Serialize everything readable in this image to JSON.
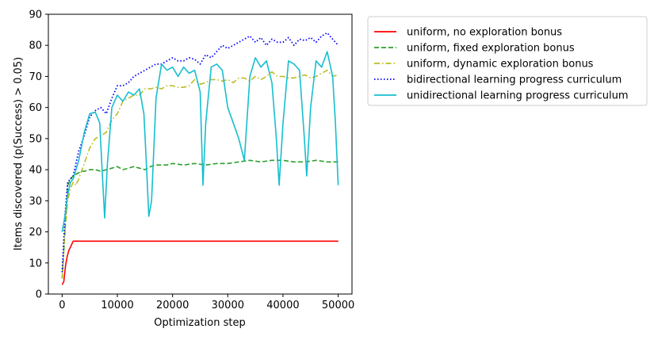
{
  "chart_data": {
    "type": "line",
    "title": "",
    "xlabel": "Optimization step",
    "ylabel": "Items discovered (p(Success) > 0.05)",
    "xlim": [
      -2500,
      52500
    ],
    "ylim": [
      0,
      90
    ],
    "xticks": [
      0,
      10000,
      20000,
      30000,
      40000,
      50000
    ],
    "yticks": [
      0,
      10,
      20,
      30,
      40,
      50,
      60,
      70,
      80,
      90
    ],
    "grid": false,
    "legend_position": "outside-right-top",
    "series": [
      {
        "name": "uniform,  no exploration bonus",
        "color": "#ff0000",
        "style": "solid",
        "x": [
          0,
          300,
          600,
          900,
          1200,
          1600,
          2000,
          2500,
          5000,
          10000,
          20000,
          30000,
          40000,
          50000
        ],
        "y": [
          3,
          4,
          9,
          12,
          14,
          15.5,
          17,
          17,
          17,
          17,
          17,
          17,
          17,
          17
        ]
      },
      {
        "name": "uniform,  fixed exploration bonus",
        "color": "#2ca02c",
        "style": "dashed",
        "x": [
          0,
          500,
          1000,
          1500,
          2000,
          2500,
          3000,
          3500,
          4000,
          5000,
          6000,
          7000,
          8000,
          9000,
          10000,
          11000,
          12000,
          13000,
          14000,
          15000,
          16000,
          17000,
          18000,
          19000,
          20000,
          22000,
          24000,
          26000,
          28000,
          30000,
          32000,
          34000,
          36000,
          38000,
          40000,
          42000,
          44000,
          46000,
          48000,
          50000
        ],
        "y": [
          5,
          20,
          35,
          37,
          38,
          38.5,
          39,
          39.5,
          39.5,
          40,
          40,
          39.5,
          40,
          40.5,
          41,
          40,
          40.5,
          41,
          40.5,
          40,
          41,
          41.5,
          41.5,
          41.5,
          42,
          41.5,
          42,
          41.5,
          42,
          42,
          42.5,
          43,
          42.5,
          43,
          43,
          42.5,
          42.5,
          43,
          42.5,
          42.5
        ]
      },
      {
        "name": "uniform,  dynamic exploration bonus",
        "color": "#bcbd22",
        "style": "dashdot",
        "x": [
          0,
          500,
          1000,
          1500,
          2000,
          2500,
          3000,
          4000,
          5000,
          6000,
          7000,
          8000,
          9000,
          10000,
          11000,
          12000,
          13000,
          14000,
          15000,
          16000,
          17000,
          18000,
          19000,
          20000,
          21000,
          22000,
          23000,
          24000,
          25000,
          26000,
          27000,
          28000,
          29000,
          30000,
          31000,
          32000,
          33000,
          34000,
          35000,
          36000,
          37000,
          38000,
          39000,
          40000,
          41000,
          42000,
          43000,
          44000,
          45000,
          46000,
          47000,
          48000,
          49000,
          50000
        ],
        "y": [
          5,
          20,
          30,
          34,
          36,
          35,
          37,
          42,
          47,
          50,
          51,
          52,
          56,
          58,
          62,
          63,
          64,
          64,
          66,
          66,
          66.5,
          66,
          67,
          67,
          66.5,
          66.5,
          67,
          69,
          67.5,
          68,
          69,
          69,
          68.5,
          69,
          68,
          69.5,
          69.5,
          68.5,
          70,
          69,
          70,
          71.5,
          70,
          70,
          69.5,
          69.5,
          70,
          70.5,
          69.5,
          70,
          71,
          72,
          70,
          70.5
        ]
      },
      {
        "name": "bidirectional learning progress curriculum",
        "color": "#0000ff",
        "style": "dotted",
        "x": [
          0,
          500,
          1000,
          1500,
          2000,
          3000,
          4000,
          5000,
          6000,
          7000,
          8000,
          9000,
          10000,
          11000,
          12000,
          13000,
          14000,
          15000,
          16000,
          17000,
          18000,
          19000,
          20000,
          21000,
          22000,
          23000,
          24000,
          25000,
          26000,
          27000,
          28000,
          29000,
          30000,
          31000,
          32000,
          33000,
          34000,
          35000,
          36000,
          37000,
          38000,
          39000,
          40000,
          41000,
          42000,
          43000,
          44000,
          45000,
          46000,
          47000,
          48000,
          49000,
          50000
        ],
        "y": [
          7,
          25,
          36,
          37,
          38,
          46,
          51,
          57,
          59,
          60,
          58,
          63,
          67,
          67,
          68,
          70,
          71,
          72,
          73,
          74,
          74,
          75,
          76,
          75,
          75,
          76,
          75.5,
          74,
          77,
          76,
          78,
          80,
          79,
          80,
          81,
          82,
          83,
          81,
          82.5,
          80,
          82,
          81,
          81,
          82.5,
          80,
          82,
          81.5,
          82.5,
          81,
          83,
          84,
          82,
          80
        ]
      },
      {
        "name": "unidirectional learning progress curriculum",
        "color": "#17becf",
        "style": "solid",
        "x": [
          0,
          500,
          1000,
          1500,
          2000,
          3000,
          4000,
          5000,
          6000,
          6800,
          7300,
          7700,
          8200,
          9000,
          10000,
          11000,
          12000,
          13000,
          14000,
          14800,
          15300,
          15700,
          16200,
          17000,
          18000,
          19000,
          20000,
          21000,
          22000,
          23000,
          24000,
          25000,
          25500,
          26000,
          27000,
          28000,
          29000,
          30000,
          31000,
          32000,
          33000,
          34000,
          35000,
          36000,
          37000,
          38000,
          38800,
          39300,
          40000,
          41000,
          42000,
          43000,
          43800,
          44300,
          45000,
          46000,
          47000,
          48000,
          49000,
          49500,
          50000
        ],
        "y": [
          20,
          25,
          32,
          36,
          37,
          43,
          52,
          58,
          58.5,
          55,
          38,
          24.5,
          42,
          60,
          64,
          62,
          65,
          64,
          66,
          58,
          40,
          25,
          30,
          63,
          74,
          72,
          73,
          70,
          73,
          71,
          72,
          65,
          35,
          55,
          73,
          74,
          72,
          60,
          55,
          50,
          43,
          70,
          76,
          73,
          75,
          68,
          50,
          35,
          55,
          75,
          74,
          72,
          52,
          38,
          60,
          75,
          73,
          78,
          70,
          55,
          35
        ]
      }
    ]
  }
}
